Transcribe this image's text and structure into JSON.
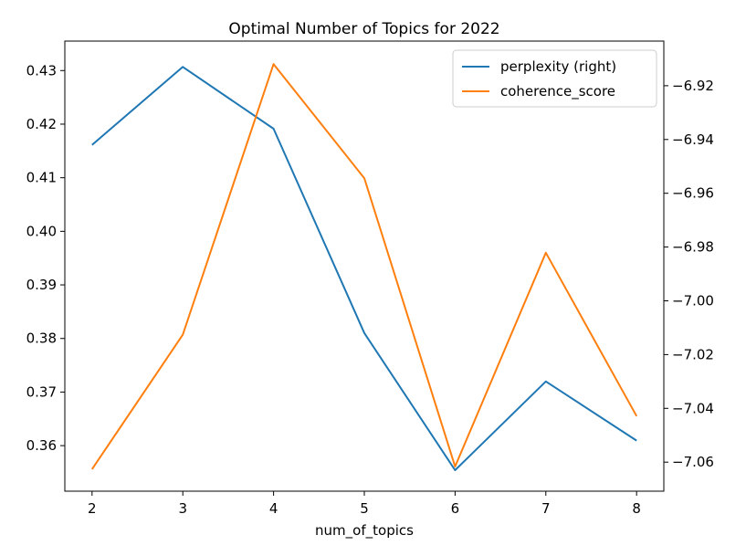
{
  "chart_data": {
    "type": "line",
    "title": "Optimal Number of Topics for 2022",
    "xlabel": "num_of_topics",
    "ylabel": "",
    "ylabel_right": "",
    "x": [
      2,
      3,
      4,
      5,
      6,
      7,
      8
    ],
    "xticks": [
      "2",
      "3",
      "4",
      "5",
      "6",
      "7",
      "8"
    ],
    "xlim": [
      1.7,
      8.3
    ],
    "ylim_left": [
      0.3515,
      0.4355
    ],
    "yticks_left": [
      "0.36",
      "0.37",
      "0.38",
      "0.39",
      "0.40",
      "0.41",
      "0.42",
      "0.43"
    ],
    "ylim_right": [
      -7.0708,
      -6.9034
    ],
    "yticks_right": [
      "−7.06",
      "−7.04",
      "−7.02",
      "−7.00",
      "−6.98",
      "−6.96",
      "−6.94",
      "−6.92"
    ],
    "series": [
      {
        "name": "perplexity (right)",
        "axis": "right",
        "color": "#1f77b4",
        "values": [
          -6.942,
          -6.913,
          -6.936,
          -7.012,
          -7.063,
          -7.03,
          -7.052
        ]
      },
      {
        "name": "coherence_score",
        "axis": "left",
        "color": "#ff7f0e",
        "values": [
          0.3556,
          0.3807,
          0.4312,
          0.4099,
          0.3561,
          0.396,
          0.3655
        ]
      }
    ],
    "legend_position": "top-right",
    "grid": false
  }
}
